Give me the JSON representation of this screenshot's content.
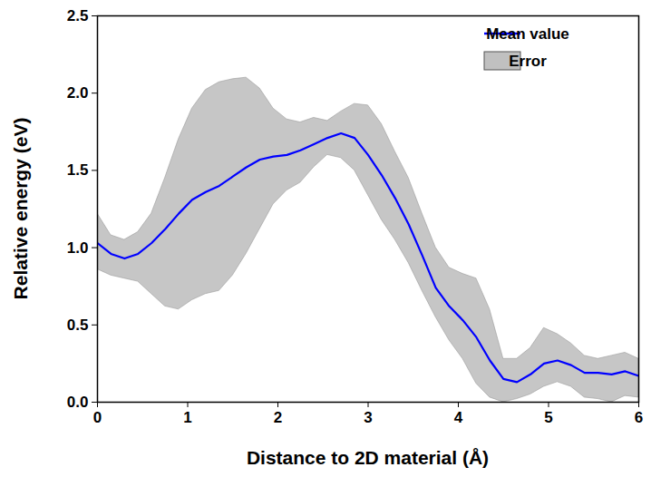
{
  "chart_data": {
    "type": "line",
    "x_label": "Distance to 2D material (Å)",
    "y_label": "Relative energy (eV)",
    "x": [
      0,
      0.15,
      0.3,
      0.45,
      0.6,
      0.75,
      0.9,
      1.05,
      1.2,
      1.35,
      1.5,
      1.65,
      1.8,
      1.95,
      2.1,
      2.25,
      2.4,
      2.55,
      2.7,
      2.85,
      3.0,
      3.15,
      3.3,
      3.45,
      3.6,
      3.75,
      3.9,
      4.05,
      4.2,
      4.35,
      4.5,
      4.65,
      4.8,
      4.95,
      5.1,
      5.25,
      5.4,
      5.55,
      5.7,
      5.85,
      6.0
    ],
    "series": [
      {
        "name": "Mean value",
        "type": "line",
        "color": "#0000ff",
        "values": [
          1.03,
          0.96,
          0.93,
          0.96,
          1.03,
          1.12,
          1.22,
          1.31,
          1.36,
          1.4,
          1.46,
          1.52,
          1.57,
          1.59,
          1.6,
          1.63,
          1.67,
          1.71,
          1.74,
          1.71,
          1.6,
          1.47,
          1.32,
          1.15,
          0.95,
          0.74,
          0.62,
          0.53,
          0.42,
          0.27,
          0.15,
          0.13,
          0.18,
          0.25,
          0.27,
          0.24,
          0.19,
          0.19,
          0.18,
          0.2,
          0.17
        ]
      },
      {
        "name": "Error",
        "type": "area",
        "color": "#c0c0c0",
        "lower": [
          0.86,
          0.82,
          0.8,
          0.78,
          0.7,
          0.62,
          0.6,
          0.66,
          0.7,
          0.72,
          0.82,
          0.96,
          1.12,
          1.28,
          1.37,
          1.42,
          1.52,
          1.6,
          1.58,
          1.5,
          1.34,
          1.18,
          1.05,
          0.9,
          0.72,
          0.55,
          0.4,
          0.28,
          0.12,
          0.03,
          0.0,
          0.02,
          0.05,
          0.1,
          0.13,
          0.1,
          0.03,
          0.02,
          0.0,
          0.04,
          0.03
        ],
        "upper": [
          1.22,
          1.08,
          1.05,
          1.1,
          1.22,
          1.45,
          1.7,
          1.9,
          2.02,
          2.07,
          2.09,
          2.1,
          2.03,
          1.9,
          1.83,
          1.81,
          1.84,
          1.82,
          1.88,
          1.93,
          1.92,
          1.8,
          1.62,
          1.45,
          1.22,
          1.0,
          0.87,
          0.83,
          0.8,
          0.6,
          0.28,
          0.28,
          0.35,
          0.48,
          0.44,
          0.38,
          0.3,
          0.28,
          0.3,
          0.32,
          0.28
        ]
      }
    ],
    "xlim": [
      0,
      6
    ],
    "xticks": [
      0,
      1,
      2,
      3,
      4,
      5,
      6
    ],
    "ylim": [
      0,
      2.5
    ],
    "yticks": [
      {
        "value": 0,
        "label": "0.0"
      },
      0.5,
      {
        "value": 1,
        "label": "1.0"
      },
      1.5,
      {
        "value": 2,
        "label": "2.0"
      },
      2.5
    ],
    "legend": "upper right",
    "grid": false
  }
}
